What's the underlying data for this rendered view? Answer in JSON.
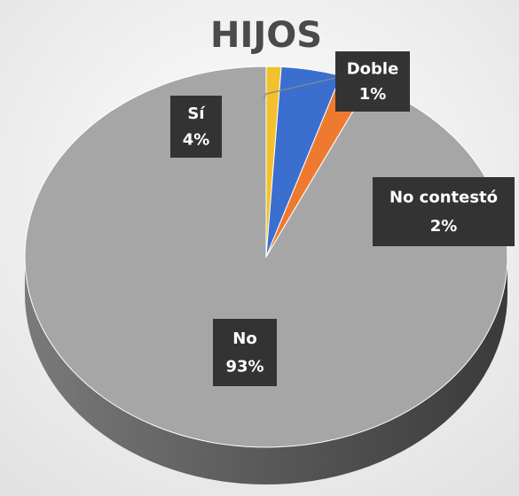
{
  "chart_data": {
    "type": "pie",
    "title": "HIJOS",
    "categories": [
      "Doble",
      "Sí",
      "No contestó",
      "No"
    ],
    "values": [
      1,
      4,
      2,
      93
    ],
    "value_labels": [
      "1%",
      "4%",
      "2%",
      "93%"
    ],
    "colors": [
      "#f2c12e",
      "#3a6fd0",
      "#ee7a30",
      "#a6a6a6"
    ]
  }
}
